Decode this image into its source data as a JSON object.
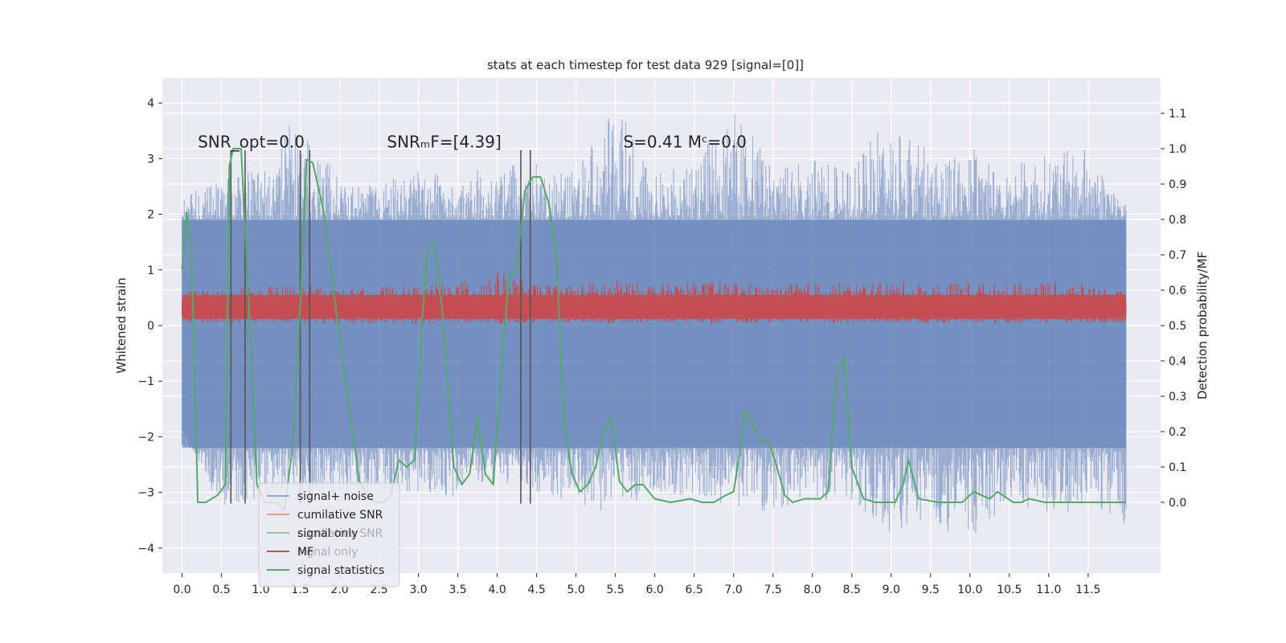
{
  "chart_data": {
    "type": "line",
    "title": "stats at each timestep for test data 929 [signal=[0]]",
    "xlabel": "",
    "ylabel": "Whitened strain",
    "y2label": "Detection probability/MF",
    "xlim": [
      -0.25,
      12.42
    ],
    "ylim": [
      -4.45,
      4.45
    ],
    "y2lim": [
      -0.2,
      1.2
    ],
    "x_ticks": [
      0.0,
      0.5,
      1.0,
      1.5,
      2.0,
      2.5,
      3.0,
      3.5,
      4.0,
      4.5,
      5.0,
      5.5,
      6.0,
      6.5,
      7.0,
      7.5,
      8.0,
      8.5,
      9.0,
      9.5,
      10.0,
      10.5,
      11.0,
      11.5
    ],
    "x_tick_labels": [
      "0.0",
      "0.5",
      "1.0",
      "1.5",
      "2.0",
      "2.5",
      "3.0",
      "3.5",
      "4.0",
      "4.5",
      "5.0",
      "5.5",
      "6.0",
      "6.5",
      "7.0",
      "7.5",
      "8.0",
      "8.5",
      "9.0",
      "9.5",
      "10.0",
      "10.5",
      "11.0",
      "11.5"
    ],
    "y_ticks": [
      -4,
      -3,
      -2,
      -1,
      0,
      1,
      2,
      3,
      4
    ],
    "y_tick_labels": [
      "−4",
      "−3",
      "−2",
      "−1",
      "0",
      "1",
      "2",
      "3",
      "4"
    ],
    "y2_ticks": [
      0.0,
      0.1,
      0.2,
      0.3,
      0.4,
      0.5,
      0.6,
      0.7,
      0.8,
      0.9,
      1.0,
      1.1
    ],
    "y2_tick_labels": [
      "0.0",
      "0.1",
      "0.2",
      "0.3",
      "0.4",
      "0.5",
      "0.6",
      "0.7",
      "0.8",
      "0.9",
      "1.0",
      "1.1"
    ],
    "annotations": [
      {
        "text": "SNR_opt=0.0",
        "x": 0.2,
        "y": 3.2
      },
      {
        "text": "SNRₘF=[4.39]",
        "x": 2.6,
        "y": 3.2
      },
      {
        "text": "S=0.41   Mᶜ=0.0",
        "x": 5.6,
        "y": 3.2
      }
    ],
    "vlines": {
      "color": "#555555",
      "ymin": -3.2,
      "ymax": 3.15,
      "x": [
        0.62,
        0.8,
        1.5,
        1.62,
        4.3,
        4.42
      ]
    },
    "noise_envelope": {
      "name": "signal+ noise",
      "color": "#4c72b0",
      "x": [
        0.0,
        0.5,
        1.0,
        1.5,
        2.0,
        2.5,
        3.0,
        3.5,
        4.0,
        4.5,
        5.0,
        5.5,
        6.0,
        6.5,
        7.0,
        7.5,
        8.0,
        8.5,
        9.0,
        9.5,
        10.0,
        10.5,
        11.0,
        11.5,
        11.98
      ],
      "upper": [
        2.3,
        2.7,
        2.8,
        3.9,
        2.6,
        2.7,
        2.8,
        2.7,
        2.9,
        3.0,
        2.8,
        4.0,
        2.7,
        3.0,
        3.9,
        2.9,
        3.0,
        2.8,
        3.9,
        3.1,
        3.2,
        2.9,
        3.1,
        3.2,
        2.2
      ],
      "lower": [
        -1.8,
        -3.4,
        -3.1,
        -3.0,
        -3.2,
        -3.0,
        -3.0,
        -3.1,
        -2.8,
        -3.0,
        -3.2,
        -3.4,
        -3.0,
        -3.1,
        -3.3,
        -3.4,
        -3.1,
        -3.2,
        -3.9,
        -3.6,
        -3.9,
        -3.3,
        -3.4,
        -3.3,
        -3.6
      ],
      "band_upper": 1.9,
      "band_lower": -2.2
    },
    "series": [
      {
        "name": "cumilative SNR",
        "color": "#dd8452",
        "x": [],
        "values": []
      },
      {
        "name": "signal only",
        "color": "#55a868",
        "x": [],
        "values": []
      },
      {
        "name": "MF",
        "color": "#c44e52",
        "axis": "left",
        "x": [
          0.0,
          0.5,
          1.0,
          1.5,
          2.0,
          2.5,
          3.0,
          3.5,
          4.0,
          4.5,
          5.0,
          5.5,
          6.0,
          6.5,
          7.0,
          7.5,
          8.0,
          8.5,
          9.0,
          9.5,
          10.0,
          10.5,
          11.0,
          11.5,
          11.98
        ],
        "upper": [
          0.6,
          0.7,
          0.7,
          0.75,
          0.65,
          0.7,
          0.72,
          0.8,
          1.0,
          0.75,
          0.75,
          0.85,
          0.75,
          0.8,
          0.8,
          0.7,
          0.8,
          0.75,
          0.8,
          0.75,
          0.8,
          0.75,
          0.8,
          0.75,
          0.6
        ],
        "lower": [
          0.05,
          0.05,
          0.03,
          0.05,
          0.02,
          0.05,
          0.03,
          0.05,
          0.03,
          0.04,
          0.05,
          0.03,
          0.05,
          0.04,
          0.03,
          0.05,
          0.02,
          0.05,
          0.03,
          0.04,
          0.05,
          0.03,
          0.05,
          0.04,
          0.05
        ]
      },
      {
        "name": "signal statistics",
        "color": "#55a868",
        "axis": "right",
        "x": [
          0.0,
          0.06,
          0.12,
          0.2,
          0.3,
          0.45,
          0.55,
          0.6,
          0.65,
          0.75,
          0.85,
          0.95,
          1.05,
          1.2,
          1.3,
          1.4,
          1.5,
          1.58,
          1.66,
          1.8,
          1.95,
          2.1,
          2.25,
          2.35,
          2.45,
          2.55,
          2.65,
          2.75,
          2.85,
          2.95,
          3.05,
          3.12,
          3.2,
          3.3,
          3.45,
          3.55,
          3.65,
          3.75,
          3.85,
          3.95,
          4.05,
          4.15,
          4.25,
          4.35,
          4.45,
          4.55,
          4.65,
          4.75,
          4.85,
          4.95,
          5.05,
          5.15,
          5.25,
          5.35,
          5.45,
          5.55,
          5.65,
          5.75,
          5.85,
          6.0,
          6.2,
          6.45,
          6.6,
          6.75,
          6.9,
          7.0,
          7.05,
          7.15,
          7.25,
          7.35,
          7.45,
          7.55,
          7.65,
          7.75,
          7.9,
          8.1,
          8.2,
          8.3,
          8.4,
          8.5,
          8.65,
          8.8,
          9.05,
          9.15,
          9.22,
          9.35,
          9.6,
          9.9,
          10.05,
          10.15,
          10.25,
          10.35,
          10.55,
          10.65,
          10.75,
          10.95,
          11.3,
          11.7,
          11.98
        ],
        "values": [
          0.66,
          0.82,
          0.7,
          0.0,
          0.0,
          0.02,
          0.05,
          0.95,
          1.0,
          1.0,
          0.55,
          0.05,
          0.0,
          0.0,
          -0.02,
          0.15,
          0.55,
          0.97,
          0.96,
          0.82,
          0.55,
          0.3,
          0.06,
          0.02,
          0.0,
          0.0,
          0.02,
          0.12,
          0.1,
          0.12,
          0.52,
          0.72,
          0.73,
          0.55,
          0.1,
          0.05,
          0.08,
          0.24,
          0.08,
          0.05,
          0.37,
          0.64,
          0.66,
          0.88,
          0.92,
          0.92,
          0.85,
          0.7,
          0.22,
          0.08,
          0.03,
          0.05,
          0.1,
          0.2,
          0.24,
          0.06,
          0.03,
          0.05,
          0.05,
          0.01,
          0.0,
          0.01,
          0.0,
          0.0,
          0.02,
          0.03,
          0.1,
          0.26,
          0.22,
          0.17,
          0.17,
          0.1,
          0.02,
          0.0,
          0.01,
          0.01,
          0.03,
          0.35,
          0.41,
          0.1,
          0.01,
          0.0,
          0.0,
          0.05,
          0.12,
          0.01,
          0.0,
          0.0,
          0.03,
          0.02,
          0.01,
          0.03,
          0.0,
          0.0,
          0.01,
          0.0,
          0.0,
          0.0,
          0.0
        ]
      }
    ],
    "legend": {
      "position": "lower-left",
      "entries": [
        {
          "label": "signal+ noise",
          "color": "#4c72b0",
          "alpha": 0.55
        },
        {
          "label": "cumilative SNR",
          "color": "#dd8452",
          "alpha": 0.7
        },
        {
          "label": "signal only",
          "color": "#55a868",
          "alpha": 0.6
        },
        {
          "label": "MF",
          "color": "#c44e52",
          "alpha": 1
        },
        {
          "label": "signal statistics",
          "color": "#55a868",
          "alpha": 1
        }
      ],
      "ghost_entries": [
        "cumilative SNR",
        "signal only"
      ]
    },
    "colors": {
      "background": "#eaeaf2",
      "grid": "#ffffff",
      "noise": "#4c72b0",
      "mf": "#c44e52",
      "stat": "#55a868"
    }
  }
}
